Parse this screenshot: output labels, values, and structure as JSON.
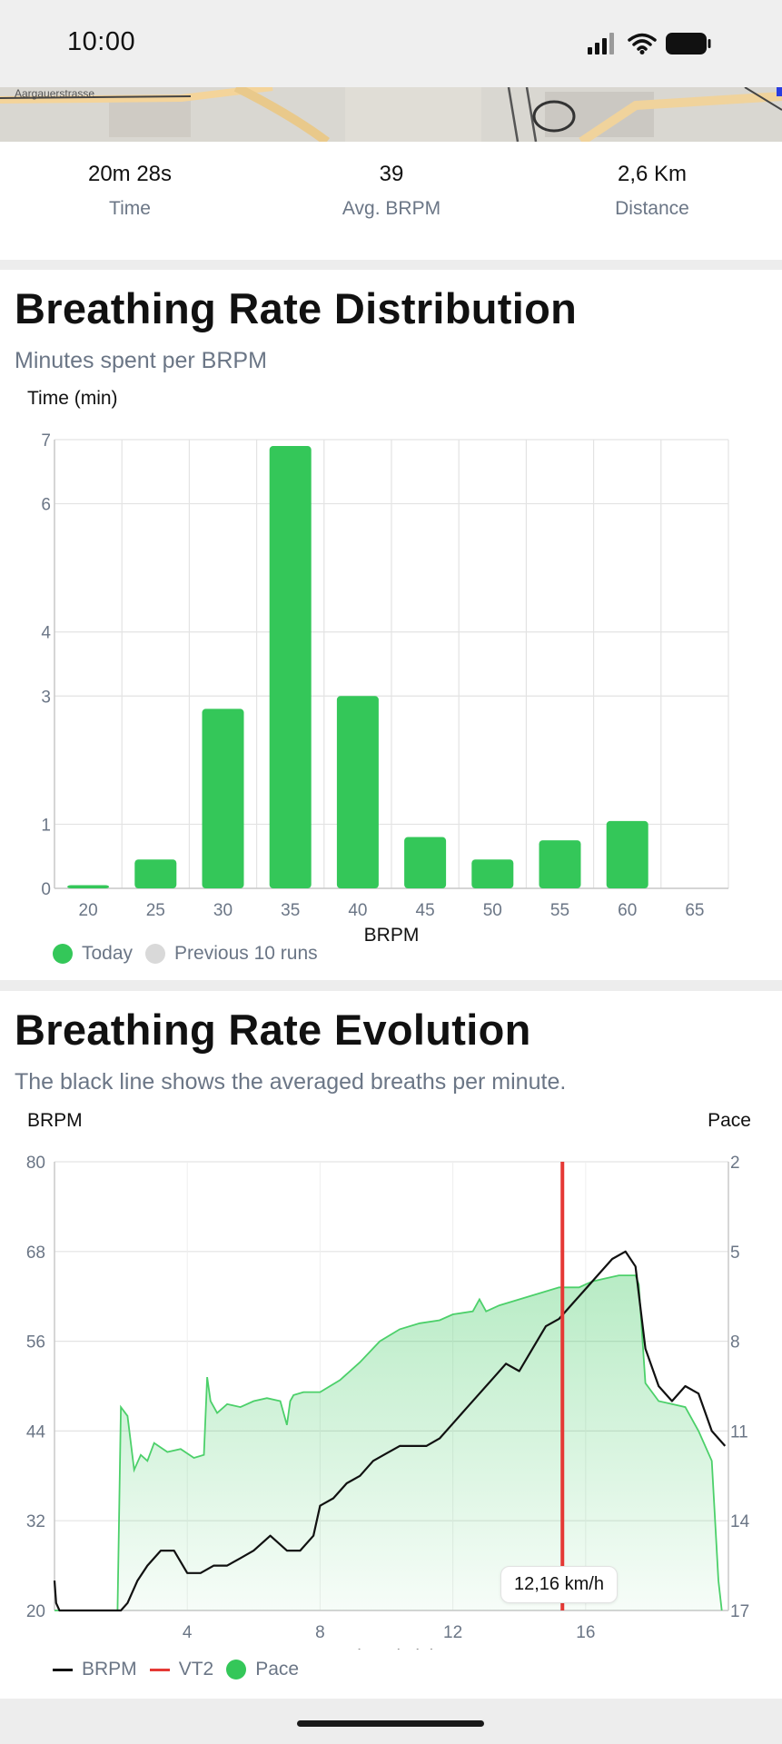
{
  "status_bar": {
    "time": "10:00"
  },
  "map": {
    "street_label": "Aargauerstrasse"
  },
  "stats": [
    {
      "value": "20m 28s",
      "label": "Time"
    },
    {
      "value": "39",
      "label": "Avg. BRPM"
    },
    {
      "value": "2,6 Km",
      "label": "Distance"
    }
  ],
  "distribution": {
    "title": "Breathing Rate Distribution",
    "subtitle": "Minutes spent per BRPM",
    "legend": [
      {
        "label": "Today",
        "color": "#34c759"
      },
      {
        "label": "Previous 10 runs",
        "color": "#d9d9d9"
      }
    ]
  },
  "evolution": {
    "title": "Breathing Rate Evolution",
    "subtitle": "The black line shows the averaged breaths per minute.",
    "tooltip": "12,16 km/h",
    "legend": [
      {
        "label": "BRPM",
        "color": "#111111",
        "kind": "line"
      },
      {
        "label": "VT2",
        "color": "#e53935",
        "kind": "line"
      },
      {
        "label": "Pace",
        "color": "#34c759",
        "kind": "dot"
      }
    ]
  },
  "chart_data": [
    {
      "type": "bar",
      "ylabel": "Time (min)",
      "xlabel": "BRPM",
      "categories": [
        "20",
        "25",
        "30",
        "35",
        "40",
        "45",
        "50",
        "55",
        "60",
        "65"
      ],
      "y_ticks": [
        "0",
        "1",
        "3",
        "4",
        "6",
        "7"
      ],
      "series": [
        {
          "name": "Today",
          "values": [
            0.05,
            0.45,
            2.8,
            6.9,
            3.0,
            0.8,
            0.45,
            0.75,
            1.05,
            0
          ]
        }
      ],
      "grid": true,
      "legend_position": "bottom-left"
    },
    {
      "type": "line",
      "xlabel": "Time (min)",
      "ylabel": "BRPM",
      "y2label": "Pace",
      "x_ticks": [
        "4",
        "8",
        "12",
        "16"
      ],
      "y_ticks": [
        "20",
        "32",
        "44",
        "56",
        "68",
        "80"
      ],
      "y2_ticks": [
        "2",
        "5",
        "8",
        "11",
        "14",
        "17"
      ],
      "xlim": [
        0,
        20.3
      ],
      "ylim": [
        20,
        80
      ],
      "vt2_x": 15.3,
      "series": [
        {
          "name": "BRPM",
          "x": [
            0,
            0.05,
            0.15,
            0.5,
            1.2,
            2.0,
            2.2,
            2.5,
            2.8,
            3.2,
            3.6,
            4.0,
            4.4,
            4.8,
            5.2,
            5.6,
            6.0,
            6.5,
            7.0,
            7.4,
            7.8,
            8.0,
            8.4,
            8.8,
            9.2,
            9.6,
            10.0,
            10.4,
            10.8,
            11.2,
            11.6,
            12.0,
            12.4,
            12.8,
            13.2,
            13.6,
            14.0,
            14.4,
            14.8,
            15.2,
            15.6,
            16.0,
            16.4,
            16.8,
            17.2,
            17.5,
            17.8,
            18.2,
            18.6,
            19.0,
            19.4,
            19.8,
            20.2
          ],
          "y": [
            24,
            21,
            20,
            20,
            20,
            20,
            21,
            24,
            26,
            28,
            28,
            25,
            25,
            26,
            26,
            27,
            28,
            30,
            28,
            28,
            30,
            34,
            35,
            37,
            38,
            40,
            41,
            42,
            42,
            42,
            43,
            45,
            47,
            49,
            51,
            53,
            52,
            55,
            58,
            59,
            61,
            63,
            65,
            67,
            68,
            66,
            55,
            50,
            48,
            50,
            49,
            44,
            42
          ]
        },
        {
          "name": "Pace",
          "x": [
            0,
            1.9,
            2.0,
            2.2,
            2.4,
            2.6,
            2.8,
            3.0,
            3.4,
            3.8,
            4.2,
            4.5,
            4.6,
            4.7,
            4.9,
            5.2,
            5.6,
            6.0,
            6.4,
            6.8,
            7.0,
            7.1,
            7.2,
            7.5,
            8.0,
            8.6,
            9.2,
            9.8,
            10.4,
            11.0,
            11.6,
            12.0,
            12.6,
            12.8,
            13.0,
            13.4,
            14.0,
            14.6,
            15.2,
            15.8,
            16.2,
            16.6,
            17.0,
            17.5,
            17.6,
            17.8,
            18.2,
            18.6,
            19.0,
            19.4,
            19.8,
            20.0,
            20.1
          ],
          "y": [
            17.0,
            17.0,
            10.2,
            10.5,
            12.3,
            11.8,
            12.0,
            11.4,
            11.7,
            11.6,
            11.9,
            11.8,
            9.2,
            10.0,
            10.4,
            10.1,
            10.2,
            10.0,
            9.9,
            10.0,
            10.8,
            10.0,
            9.8,
            9.7,
            9.7,
            9.3,
            8.7,
            8.0,
            7.6,
            7.4,
            7.3,
            7.1,
            7.0,
            6.6,
            7.0,
            6.8,
            6.6,
            6.4,
            6.2,
            6.2,
            6.0,
            5.9,
            5.8,
            5.8,
            6.1,
            9.4,
            10.0,
            10.1,
            10.2,
            11.0,
            12.0,
            16.0,
            17.0
          ]
        }
      ],
      "grid": true,
      "legend_position": "bottom-left"
    }
  ]
}
